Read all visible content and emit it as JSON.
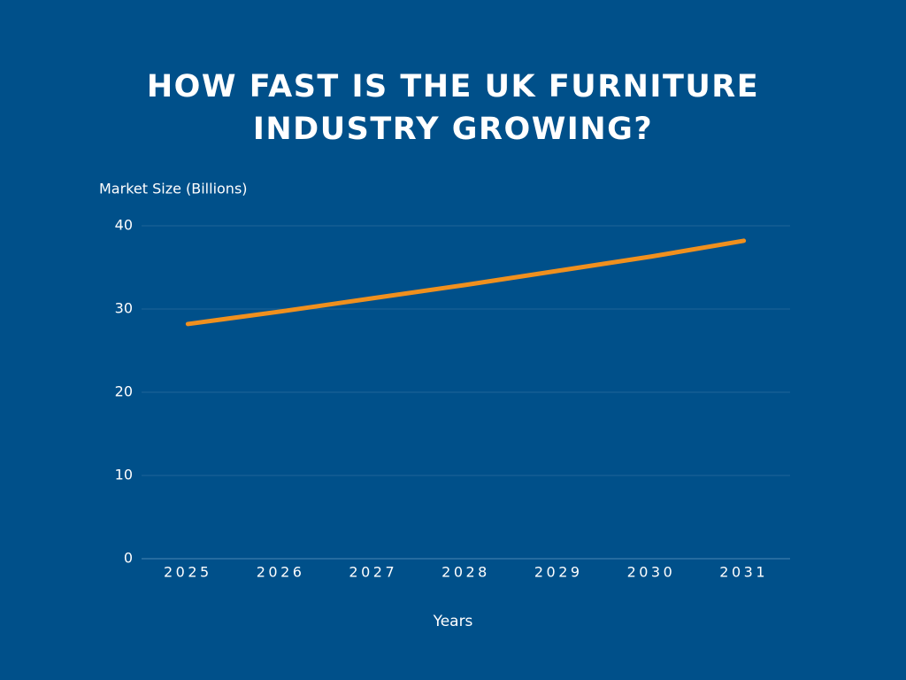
{
  "chart_data": {
    "type": "line",
    "title": "HOW FAST IS THE UK FURNITURE INDUSTRY GROWING?",
    "y_label": "Market Size (Billions)",
    "x_label": "Years",
    "categories": [
      "2025",
      "2026",
      "2027",
      "2028",
      "2029",
      "2030",
      "2031"
    ],
    "values": [
      28.2,
      29.7,
      31.3,
      32.9,
      34.6,
      36.3,
      38.2
    ],
    "color": "#f0901e",
    "ylim": [
      0,
      40
    ],
    "yticks": [
      0,
      10,
      20,
      30,
      40
    ],
    "grid": true
  }
}
